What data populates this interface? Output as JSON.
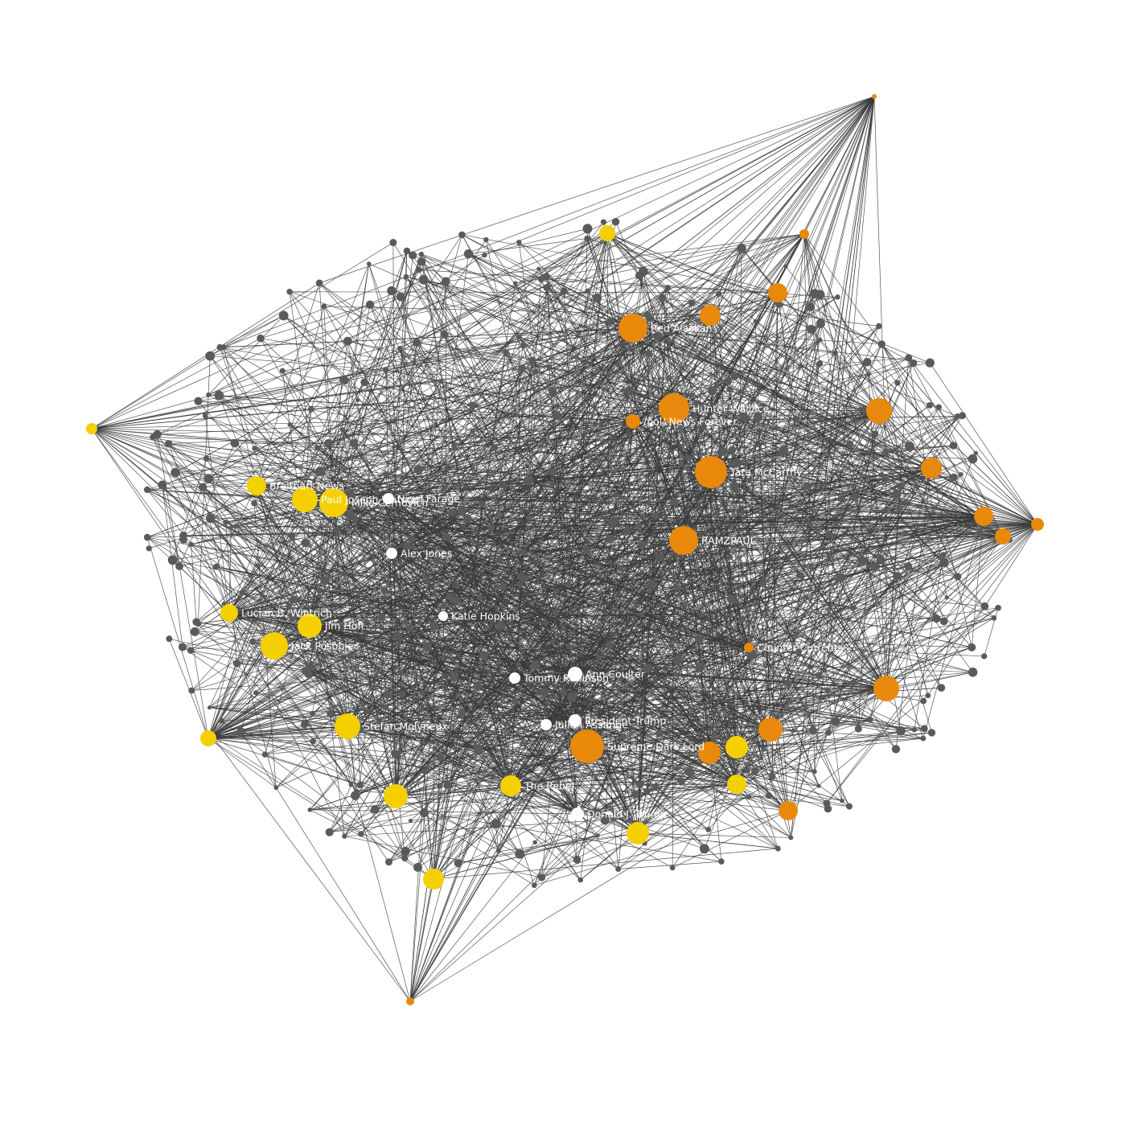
{
  "nodes": [
    {
      "label": "Breitbart News",
      "color": "#f5d000"
    },
    {
      "label": "Paul Joseph Watson",
      "color": "#f5d000"
    },
    {
      "label": "Mike Cernovich",
      "color": "#f5d000"
    },
    {
      "label": "Nigel Farage",
      "color": "#ffffff"
    },
    {
      "label": "Alex Jones",
      "color": "#ffffff"
    },
    {
      "label": "Katie Hopkins",
      "color": "#ffffff"
    },
    {
      "label": "Lucian B. Wintrich",
      "color": "#f5d000"
    },
    {
      "label": "Jim Hoft",
      "color": "#f5d000"
    },
    {
      "label": "Jack Posobiec",
      "color": "#f5d000"
    },
    {
      "label": "Stefan Molyneux",
      "color": "#f5d000"
    },
    {
      "label": "Tommy Robinson",
      "color": "#ffffff"
    },
    {
      "label": "Ann Coulter",
      "color": "#ffffff"
    },
    {
      "label": "President Trump",
      "color": "#ffffff"
    },
    {
      "label": "Julian Assange",
      "color": "#ffffff"
    },
    {
      "label": "Supreme Dark Lord",
      "color": "#e8890c"
    },
    {
      "label": "The Rebel",
      "color": "#f5d000"
    },
    {
      "label": "Donald J. Trump",
      "color": "#ffffff"
    },
    {
      "label": "Hunter Wallace",
      "color": "#e8890c"
    },
    {
      "label": "/pol/ News Forever",
      "color": "#e8890c"
    },
    {
      "label": "Tara McCarthy",
      "color": "#e8890c"
    },
    {
      "label": "RAMZPAUL",
      "color": "#e8890c"
    },
    {
      "label": "Counter-Currents",
      "color": "#e8890c"
    },
    {
      "label": "Red Alaskan",
      "color": "#e8890c"
    }
  ]
}
